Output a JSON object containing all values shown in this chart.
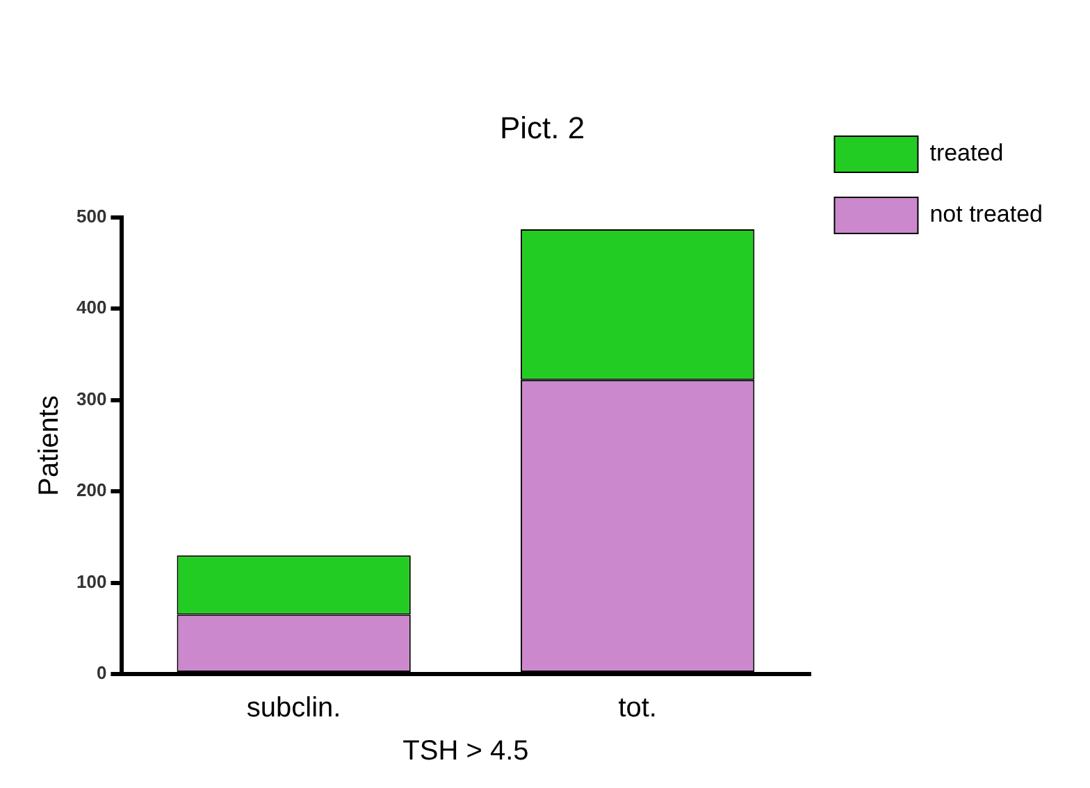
{
  "chart_data": {
    "type": "bar",
    "title": "Pict. 2",
    "xlabel": "TSH > 4.5",
    "ylabel": "Patients",
    "categories": [
      "subclin.",
      "tot."
    ],
    "stacked": true,
    "ylim": [
      0,
      500
    ],
    "yticks": [
      0,
      100,
      200,
      300,
      400,
      500
    ],
    "grid": false,
    "legend": "right",
    "series": [
      {
        "name": "not treated",
        "color": "#cc88cc",
        "values": [
          65,
          322
        ]
      },
      {
        "name": "treated",
        "color": "#22cc22",
        "values": [
          65,
          165
        ]
      }
    ]
  }
}
